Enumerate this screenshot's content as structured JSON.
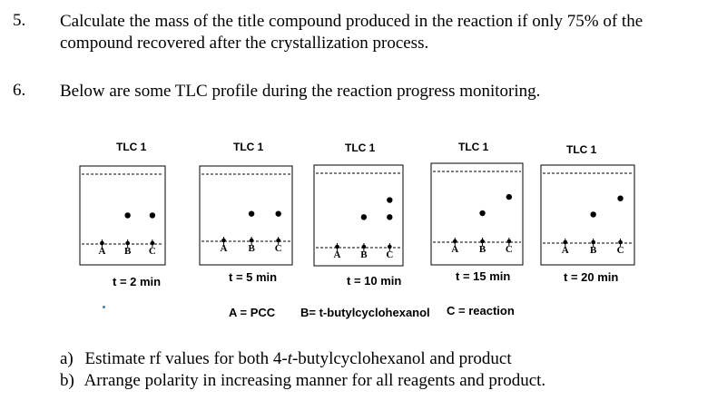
{
  "questions": [
    {
      "number": "5.",
      "lines": [
        "Calculate the mass of the title compound produced in the reaction if only 75% of the",
        "compound recovered after the crystallization process."
      ]
    },
    {
      "number": "6.",
      "lines": [
        "Below are some TLC profile during the reaction progress monitoring."
      ]
    }
  ],
  "tlc_plates": [
    {
      "title": "TLC 1",
      "time": "t = 2 min",
      "lanes": [
        "A",
        "B",
        "C"
      ],
      "spots": {
        "A": [
          0
        ],
        "B": [
          0,
          0.41
        ],
        "C": [
          0,
          0.41
        ]
      }
    },
    {
      "title": "TLC 1",
      "time": "t = 5 min",
      "lanes": [
        "A",
        "B",
        "C"
      ],
      "spots": {
        "A": [
          0
        ],
        "B": [
          0,
          0.41
        ],
        "C": [
          0,
          0.41
        ]
      }
    },
    {
      "title": "TLC 1",
      "time": "t = 10 min",
      "lanes": [
        "A",
        "B",
        "C"
      ],
      "spots": {
        "A": [
          0
        ],
        "B": [
          0,
          0.41
        ],
        "C": [
          0,
          0.41,
          0.64
        ]
      }
    },
    {
      "title": "TLC 1",
      "time": "t = 15 min",
      "lanes": [
        "A",
        "B",
        "C"
      ],
      "spots": {
        "A": [
          0
        ],
        "B": [
          0,
          0.41
        ],
        "C": [
          0,
          0.64
        ]
      }
    },
    {
      "title": "TLC 1",
      "time": "t = 20 min",
      "lanes": [
        "A",
        "B",
        "C"
      ],
      "spots": {
        "A": [
          0
        ],
        "B": [
          0,
          0.41
        ],
        "C": [
          0,
          0.64
        ]
      }
    }
  ],
  "legend": {
    "a": "A = PCC",
    "b": "B= t-butylcyclohexanol",
    "c": "C = reaction"
  },
  "subquestions": {
    "a_prefix": "a)",
    "a_before": "Estimate rf values for both 4-",
    "a_italic": "t",
    "a_after": "-butylcyclohexanol and product",
    "b_prefix": "b)",
    "b_text": "Arrange polarity in increasing manner for all reagents and product."
  }
}
